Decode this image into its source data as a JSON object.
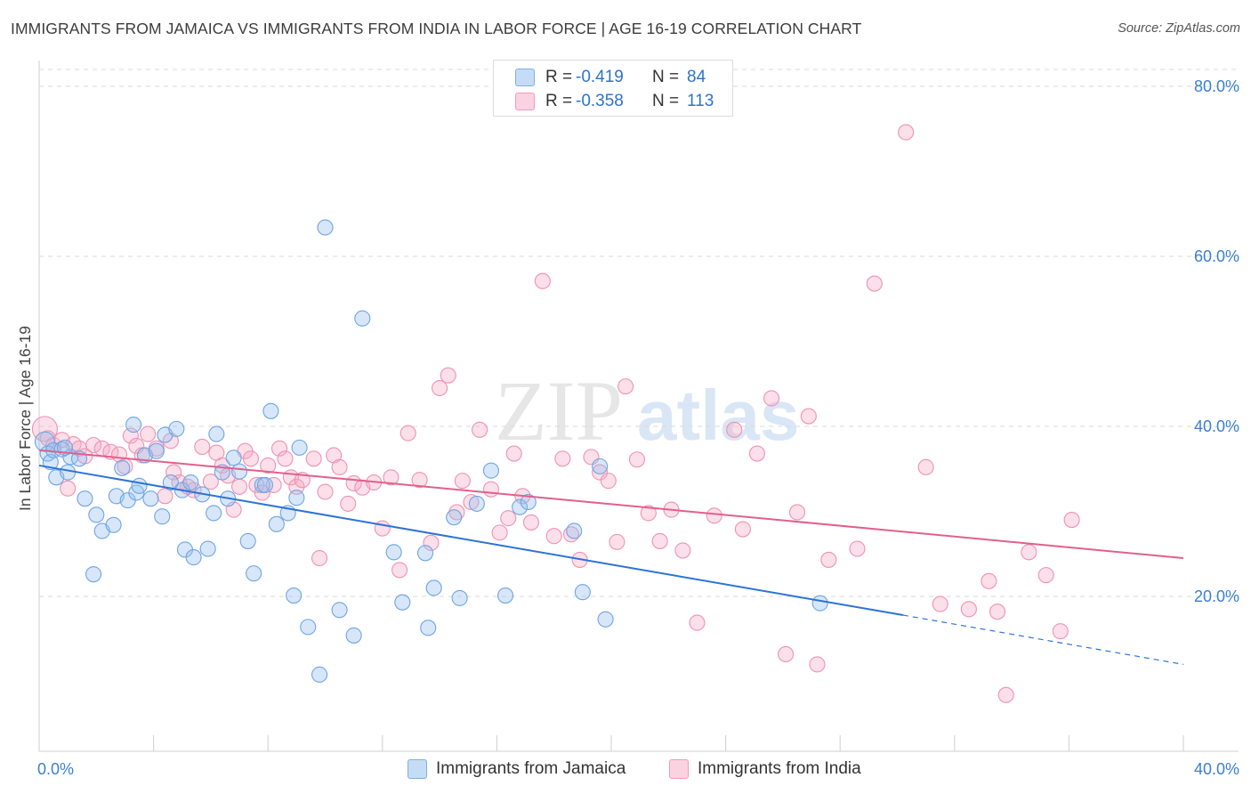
{
  "title": "IMMIGRANTS FROM JAMAICA VS IMMIGRANTS FROM INDIA IN LABOR FORCE | AGE 16-19 CORRELATION CHART",
  "source": "Source: ZipAtlas.com",
  "watermark": {
    "zip": "ZIP",
    "atlas": "atlas"
  },
  "legend": {
    "r_label": "R =",
    "n_label": "N =",
    "rows": [
      {
        "r": "-0.419",
        "n": "84",
        "color": "#9dc3ef"
      },
      {
        "r": "-0.358",
        "n": "113",
        "color": "#f5b3c8"
      }
    ]
  },
  "bottom_legend": [
    {
      "label": "Immigrants from Jamaica",
      "color": "#9dc3ef"
    },
    {
      "label": "Immigrants from India",
      "color": "#f5b3c8"
    }
  ],
  "colors": {
    "jamaica": "#6fa5e3",
    "jamaica_line": "#2e73d4",
    "india": "#ee93b1",
    "india_line": "#e0608c",
    "tick": "#3a7fd5",
    "grid": "#d9d9d9"
  },
  "chart_data": {
    "type": "scatter",
    "title": "IMMIGRANTS FROM JAMAICA VS IMMIGRANTS FROM INDIA IN LABOR FORCE | AGE 16-19 CORRELATION CHART",
    "xlabel": "",
    "ylabel": "In Labor Force | Age 16-19",
    "xlim": [
      0,
      40
    ],
    "ylim": [
      0,
      80
    ],
    "x_tick_labels": [
      "0.0%",
      "40.0%"
    ],
    "y_ticks": [
      20,
      40,
      60,
      80
    ],
    "y_tick_labels": [
      "20.0%",
      "40.0%",
      "60.0%",
      "80.0%"
    ],
    "grid": true,
    "legend_position": "top-center",
    "series": [
      {
        "name": "Immigrants from Jamaica",
        "r": -0.419,
        "n": 84,
        "trend": {
          "x0": 0,
          "y0": 35.4,
          "x1": 30.2,
          "y1": 17.8,
          "dashed_to_x": 40,
          "dashed_to_y": 12.0
        },
        "points": [
          [
            0.2,
            38.2
          ],
          [
            0.3,
            36.8
          ],
          [
            0.4,
            35.8
          ],
          [
            0.6,
            34.0
          ],
          [
            0.5,
            37.2
          ],
          [
            0.8,
            37.3
          ],
          [
            1.0,
            34.6
          ],
          [
            1.1,
            36.4
          ],
          [
            0.9,
            37.5
          ],
          [
            1.4,
            36.2
          ],
          [
            1.6,
            31.5
          ],
          [
            1.9,
            22.6
          ],
          [
            2.0,
            29.6
          ],
          [
            2.2,
            27.7
          ],
          [
            2.6,
            28.4
          ],
          [
            2.7,
            31.8
          ],
          [
            2.9,
            35.1
          ],
          [
            3.1,
            31.3
          ],
          [
            3.3,
            40.2
          ],
          [
            3.4,
            32.2
          ],
          [
            3.5,
            33.0
          ],
          [
            3.7,
            36.6
          ],
          [
            3.9,
            31.5
          ],
          [
            4.1,
            37.1
          ],
          [
            4.3,
            29.4
          ],
          [
            4.4,
            39.0
          ],
          [
            4.6,
            33.4
          ],
          [
            4.8,
            39.7
          ],
          [
            5.0,
            32.5
          ],
          [
            5.1,
            25.5
          ],
          [
            5.3,
            33.4
          ],
          [
            5.4,
            24.6
          ],
          [
            5.7,
            32.0
          ],
          [
            5.9,
            25.6
          ],
          [
            6.1,
            29.8
          ],
          [
            6.2,
            39.1
          ],
          [
            6.4,
            34.6
          ],
          [
            6.6,
            31.5
          ],
          [
            6.8,
            36.3
          ],
          [
            7.0,
            34.7
          ],
          [
            7.3,
            26.5
          ],
          [
            7.5,
            22.7
          ],
          [
            7.8,
            33.1
          ],
          [
            7.9,
            33.1
          ],
          [
            8.1,
            41.8
          ],
          [
            8.3,
            28.5
          ],
          [
            8.7,
            29.8
          ],
          [
            8.9,
            20.1
          ],
          [
            9.0,
            31.6
          ],
          [
            9.1,
            37.5
          ],
          [
            9.4,
            16.4
          ],
          [
            9.8,
            10.8
          ],
          [
            10.0,
            63.4
          ],
          [
            10.5,
            18.4
          ],
          [
            11.0,
            15.4
          ],
          [
            11.3,
            52.7
          ],
          [
            12.4,
            25.2
          ],
          [
            12.7,
            19.3
          ],
          [
            13.5,
            25.1
          ],
          [
            13.6,
            16.3
          ],
          [
            13.8,
            21.0
          ],
          [
            14.5,
            29.3
          ],
          [
            14.7,
            19.8
          ],
          [
            15.3,
            30.9
          ],
          [
            15.8,
            34.8
          ],
          [
            16.3,
            20.1
          ],
          [
            16.8,
            30.5
          ],
          [
            17.1,
            31.1
          ],
          [
            18.7,
            27.7
          ],
          [
            19.0,
            20.5
          ],
          [
            19.6,
            35.3
          ],
          [
            19.8,
            17.3
          ],
          [
            27.3,
            19.2
          ]
        ]
      },
      {
        "name": "Immigrants from India",
        "r": -0.358,
        "n": 113,
        "trend": {
          "x0": 0,
          "y0": 37.2,
          "x1": 40,
          "y1": 24.5
        },
        "points": [
          [
            0.2,
            39.7
          ],
          [
            0.3,
            38.6
          ],
          [
            0.5,
            37.8
          ],
          [
            0.8,
            38.4
          ],
          [
            1.0,
            32.7
          ],
          [
            1.2,
            37.9
          ],
          [
            1.4,
            37.4
          ],
          [
            1.6,
            36.5
          ],
          [
            1.9,
            37.8
          ],
          [
            2.2,
            37.4
          ],
          [
            2.5,
            37.0
          ],
          [
            2.8,
            36.7
          ],
          [
            3.0,
            35.3
          ],
          [
            3.2,
            38.9
          ],
          [
            3.4,
            37.7
          ],
          [
            3.6,
            36.6
          ],
          [
            3.8,
            39.1
          ],
          [
            4.1,
            37.4
          ],
          [
            4.4,
            31.8
          ],
          [
            4.6,
            38.3
          ],
          [
            4.7,
            34.6
          ],
          [
            4.9,
            33.4
          ],
          [
            5.2,
            32.9
          ],
          [
            5.4,
            32.5
          ],
          [
            5.7,
            37.6
          ],
          [
            6.0,
            33.5
          ],
          [
            6.2,
            36.9
          ],
          [
            6.4,
            35.4
          ],
          [
            6.6,
            34.2
          ],
          [
            6.8,
            30.2
          ],
          [
            7.0,
            32.9
          ],
          [
            7.2,
            37.1
          ],
          [
            7.4,
            36.2
          ],
          [
            7.6,
            33.1
          ],
          [
            7.8,
            32.2
          ],
          [
            8.0,
            35.4
          ],
          [
            8.2,
            33.1
          ],
          [
            8.4,
            37.4
          ],
          [
            8.6,
            36.2
          ],
          [
            8.8,
            34.0
          ],
          [
            9.0,
            32.9
          ],
          [
            9.2,
            33.7
          ],
          [
            9.6,
            36.2
          ],
          [
            9.8,
            24.5
          ],
          [
            10.0,
            32.3
          ],
          [
            10.3,
            36.6
          ],
          [
            10.5,
            35.2
          ],
          [
            10.8,
            30.9
          ],
          [
            11.0,
            33.3
          ],
          [
            11.3,
            32.8
          ],
          [
            11.7,
            33.4
          ],
          [
            12.0,
            28.0
          ],
          [
            12.3,
            34.0
          ],
          [
            12.6,
            23.1
          ],
          [
            12.9,
            39.2
          ],
          [
            13.3,
            33.7
          ],
          [
            13.7,
            26.3
          ],
          [
            14.0,
            44.5
          ],
          [
            14.3,
            46.0
          ],
          [
            14.6,
            29.9
          ],
          [
            14.8,
            33.6
          ],
          [
            15.1,
            31.1
          ],
          [
            15.4,
            39.6
          ],
          [
            15.8,
            32.6
          ],
          [
            16.1,
            27.5
          ],
          [
            16.4,
            29.2
          ],
          [
            16.6,
            36.8
          ],
          [
            16.9,
            31.8
          ],
          [
            17.2,
            28.7
          ],
          [
            17.6,
            57.1
          ],
          [
            18.0,
            27.1
          ],
          [
            18.3,
            36.2
          ],
          [
            18.6,
            27.3
          ],
          [
            18.9,
            24.3
          ],
          [
            19.3,
            36.4
          ],
          [
            19.6,
            34.6
          ],
          [
            19.9,
            33.6
          ],
          [
            20.2,
            26.4
          ],
          [
            20.5,
            44.7
          ],
          [
            20.9,
            36.1
          ],
          [
            21.3,
            29.8
          ],
          [
            21.7,
            26.5
          ],
          [
            22.1,
            30.2
          ],
          [
            22.5,
            25.4
          ],
          [
            23.0,
            16.9
          ],
          [
            23.6,
            29.5
          ],
          [
            24.3,
            39.6
          ],
          [
            24.6,
            27.9
          ],
          [
            25.1,
            36.8
          ],
          [
            25.6,
            43.3
          ],
          [
            26.1,
            13.2
          ],
          [
            26.5,
            29.9
          ],
          [
            26.9,
            41.2
          ],
          [
            27.2,
            12.0
          ],
          [
            27.6,
            24.3
          ],
          [
            28.6,
            25.6
          ],
          [
            29.2,
            56.8
          ],
          [
            30.3,
            74.6
          ],
          [
            31.0,
            35.2
          ],
          [
            31.5,
            19.1
          ],
          [
            32.5,
            18.5
          ],
          [
            33.2,
            21.8
          ],
          [
            33.5,
            18.2
          ],
          [
            33.8,
            8.4
          ],
          [
            34.6,
            25.2
          ],
          [
            35.2,
            22.5
          ],
          [
            35.7,
            15.9
          ],
          [
            36.1,
            29.0
          ]
        ]
      }
    ]
  }
}
